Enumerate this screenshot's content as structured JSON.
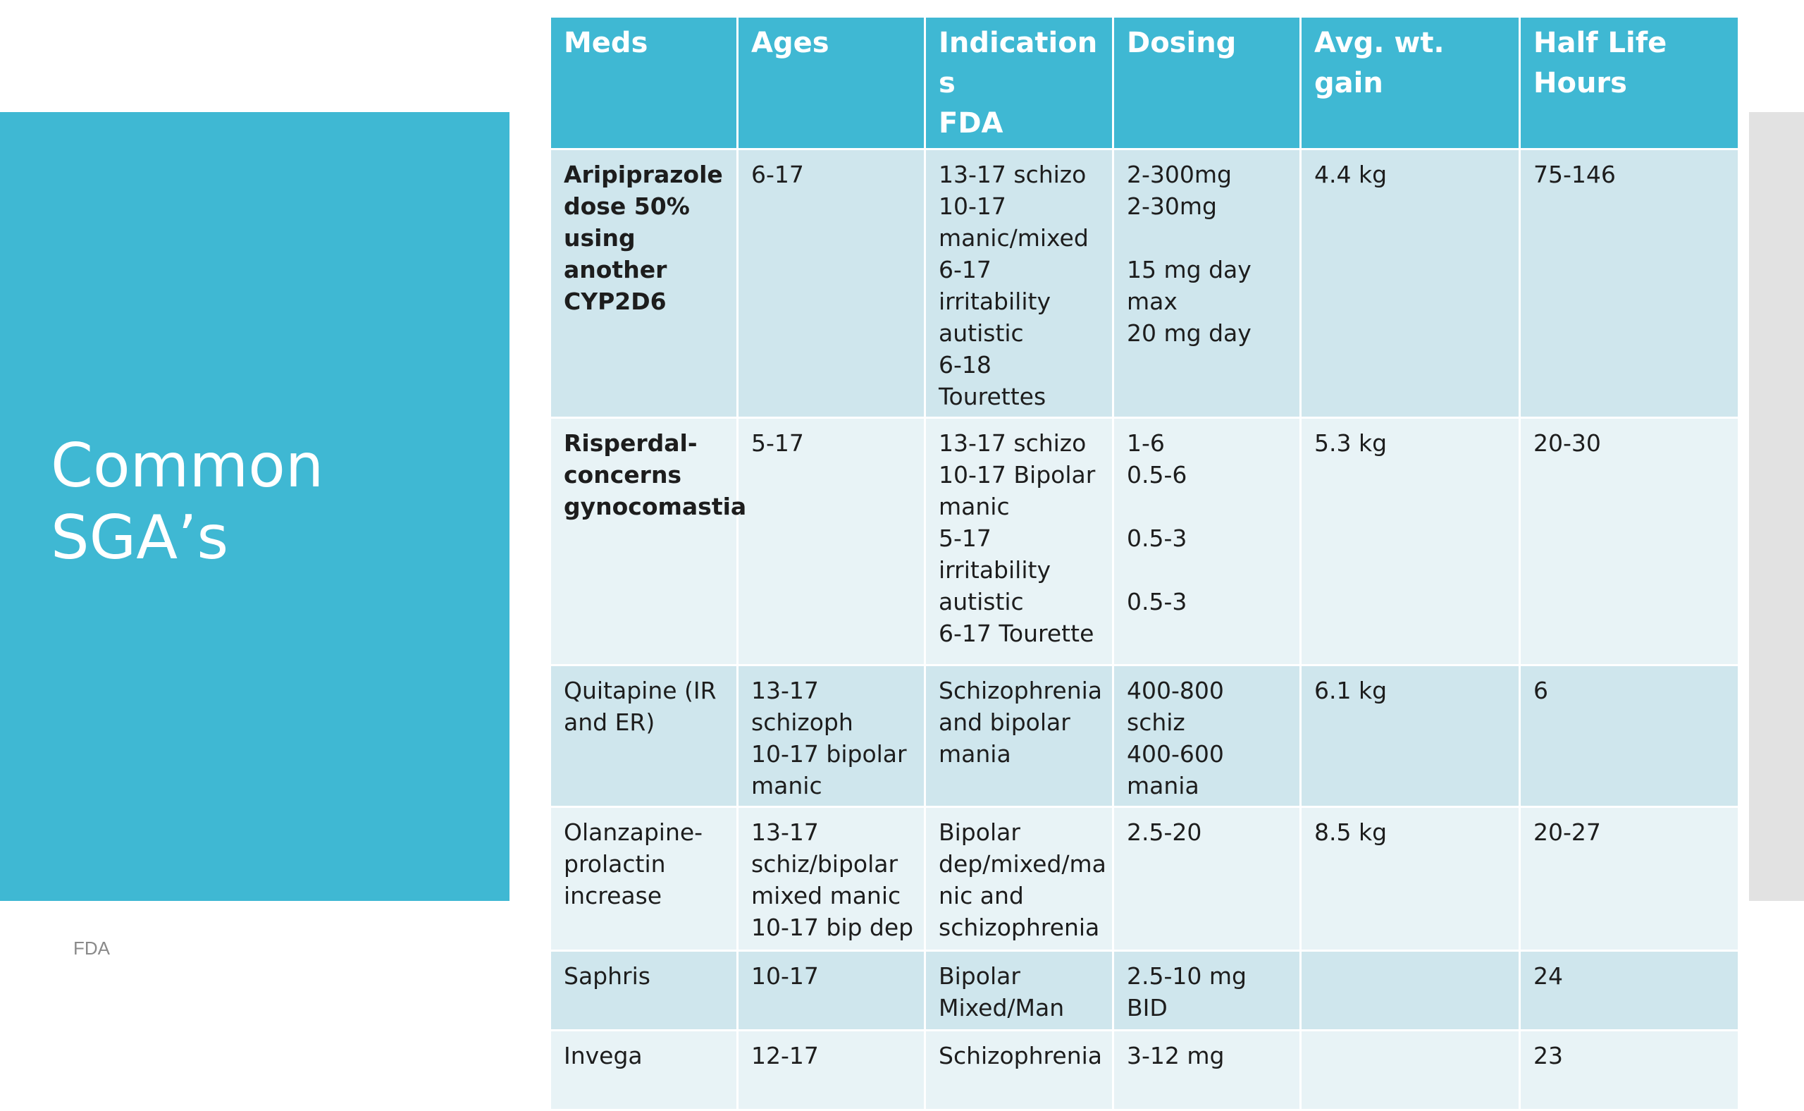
{
  "slide": {
    "title_line1": "Common",
    "title_line2": "SGA’s",
    "source": "FDA"
  },
  "table": {
    "headers": {
      "meds": "Meds",
      "ages": "Ages",
      "indications_l1": "Indication",
      "indications_l2": "s",
      "indications_l3": "FDA",
      "dosing": "Dosing",
      "wt_l1": "Avg. wt.",
      "wt_l2": "gain",
      "half_l1": "Half Life",
      "half_l2": "Hours"
    },
    "rows": [
      {
        "meds": [
          "Aripiprazole",
          "dose 50%",
          "using another",
          "CYP2D6"
        ],
        "ages": "6-17",
        "indications": [
          "13-17 schizo",
          "10-17",
          "manic/mixed",
          "6-17 irritability",
          "autistic",
          "6-18 Tourettes"
        ],
        "dosing": [
          "2-300mg",
          "2-30mg",
          "",
          "15 mg day",
          "max",
          "20 mg day"
        ],
        "wt_gain": "4.4 kg",
        "half_life": "75-146"
      },
      {
        "meds": [
          "Risperdal-",
          "concerns",
          "gynocomastia"
        ],
        "ages": "5-17",
        "indications": [
          "13-17 schizo",
          "10-17 Bipolar",
          "manic",
          "5-17 irritability",
          "autistic",
          "6-17 Tourette"
        ],
        "dosing": [
          "1-6",
          "0.5-6",
          "",
          "0.5-3",
          "",
          "0.5-3"
        ],
        "wt_gain": "5.3 kg",
        "half_life": "20-30"
      },
      {
        "meds": [
          "Quitapine (IR",
          "and ER)"
        ],
        "ages": [
          "13-17 schizoph",
          "10-17 bipolar",
          "manic"
        ],
        "indications": [
          "Schizophrenia",
          "and bipolar",
          "mania"
        ],
        "dosing": [
          "400-800 schiz",
          "400-600",
          "mania"
        ],
        "wt_gain": "6.1 kg",
        "half_life": "6"
      },
      {
        "meds": [
          "Olanzapine-",
          "prolactin",
          "increase"
        ],
        "ages": [
          "13-17",
          "schiz/bipolar",
          "mixed manic",
          "10-17 bip dep"
        ],
        "indications": [
          "Bipolar",
          "dep/mixed/ma",
          "nic and",
          "schizophrenia"
        ],
        "dosing": "2.5-20",
        "wt_gain": "8.5 kg",
        "half_life": "20-27"
      },
      {
        "meds": "Saphris",
        "ages": "10-17",
        "indications": [
          "Bipolar",
          "Mixed/Man"
        ],
        "dosing": "2.5-10 mg BID",
        "wt_gain": "",
        "half_life": "24"
      },
      {
        "meds": "Invega",
        "ages": "12-17",
        "indications": "Schizophrenia",
        "dosing": "3-12 mg",
        "wt_gain": "",
        "half_life": "23"
      }
    ]
  }
}
